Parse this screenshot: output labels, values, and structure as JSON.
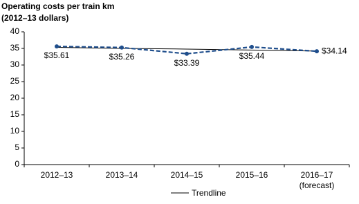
{
  "chart_data": {
    "type": "line",
    "title": "Operating costs per train km",
    "subtitle": "(2012–13 dollars)",
    "categories": [
      "2012–13",
      "2013–14",
      "2014–15",
      "2015–16",
      "2016–17 (forecast)"
    ],
    "series": [
      {
        "color": "#1f4e8c",
        "dashed": true,
        "markers": true,
        "values": [
          35.61,
          35.26,
          33.39,
          35.44,
          34.14
        ],
        "value_labels": [
          "$35.61",
          "$35.26",
          "$33.39",
          "$35.44",
          "$34.14"
        ]
      },
      {
        "name": "Trendline",
        "color": "#000000",
        "dashed": false,
        "markers": false,
        "values": [
          35.3,
          35.0,
          34.8,
          34.5,
          34.2
        ]
      }
    ],
    "ylim": [
      0,
      40
    ],
    "yticks": [
      0,
      5,
      10,
      15,
      20,
      25,
      30,
      35,
      40
    ],
    "grid": false
  }
}
